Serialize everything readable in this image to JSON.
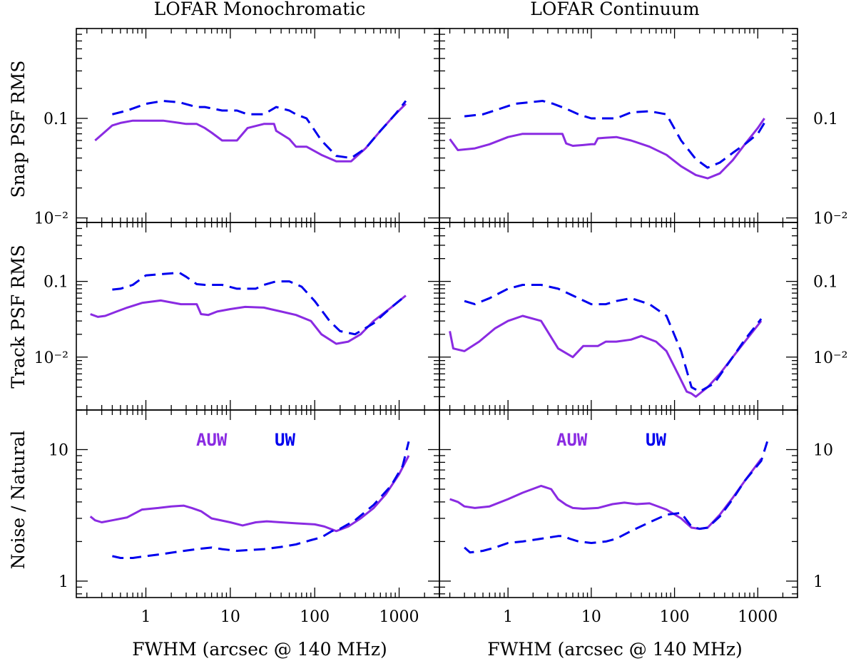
{
  "colors": {
    "auw": "#8A2BE2",
    "uw": "#0000EE",
    "axes": "#000000"
  },
  "chart_data": {
    "type": "line",
    "column_titles": [
      "LOFAR Monochromatic",
      "LOFAR Continuum"
    ],
    "xlabel": "FWHM (arcsec @ 140 MHz)",
    "xscale": "log",
    "xlim": [
      0.15,
      3000
    ],
    "x_tick_labels": [
      "1",
      "10",
      "100",
      "1000"
    ],
    "legend": {
      "auw": "AUW",
      "uw": "UW"
    },
    "rows": [
      {
        "ylabel": "Snap PSF RMS",
        "ylim": [
          0.009,
          0.8
        ],
        "tick_labels": [
          "0.1",
          "10⁻²"
        ],
        "panels": [
          {
            "title": "LOFAR Monochromatic",
            "series": [
              {
                "name": "AUW",
                "style": "solid",
                "x": [
                  0.25,
                  0.32,
                  0.4,
                  0.5,
                  0.7,
                  1,
                  1.6,
                  2.5,
                  3,
                  4,
                  5,
                  6,
                  8,
                  12,
                  16,
                  25,
                  33,
                  35,
                  50,
                  60,
                  80,
                  120,
                  180,
                  270,
                  400,
                  600,
                  900,
                  1200
                ],
                "y": [
                  0.06,
                  0.072,
                  0.085,
                  0.09,
                  0.095,
                  0.095,
                  0.095,
                  0.09,
                  0.088,
                  0.088,
                  0.08,
                  0.072,
                  0.06,
                  0.06,
                  0.08,
                  0.088,
                  0.088,
                  0.075,
                  0.062,
                  0.052,
                  0.052,
                  0.043,
                  0.037,
                  0.037,
                  0.05,
                  0.075,
                  0.11,
                  0.14
                ]
              },
              {
                "name": "UW",
                "style": "dashed",
                "x": [
                  0.4,
                  0.6,
                  1,
                  1.6,
                  2.5,
                  4,
                  5,
                  8,
                  12,
                  16,
                  25,
                  35,
                  50,
                  60,
                  80,
                  120,
                  180,
                  270,
                  400,
                  600,
                  900,
                  1200
                ],
                "y": [
                  0.11,
                  0.12,
                  0.14,
                  0.15,
                  0.145,
                  0.13,
                  0.13,
                  0.12,
                  0.12,
                  0.11,
                  0.11,
                  0.13,
                  0.12,
                  0.11,
                  0.1,
                  0.06,
                  0.042,
                  0.04,
                  0.05,
                  0.075,
                  0.11,
                  0.15
                ]
              }
            ]
          },
          {
            "title": "LOFAR Continuum",
            "series": [
              {
                "name": "AUW",
                "style": "solid",
                "x": [
                  0.2,
                  0.25,
                  0.4,
                  0.6,
                  1,
                  1.5,
                  2.5,
                  4,
                  4.5,
                  5,
                  6,
                  8,
                  10,
                  11,
                  12,
                  15,
                  20,
                  30,
                  50,
                  80,
                  120,
                  180,
                  250,
                  350,
                  500,
                  700,
                  1000,
                  1200
                ],
                "y": [
                  0.062,
                  0.048,
                  0.05,
                  0.055,
                  0.065,
                  0.07,
                  0.07,
                  0.07,
                  0.07,
                  0.056,
                  0.053,
                  0.054,
                  0.055,
                  0.055,
                  0.063,
                  0.064,
                  0.065,
                  0.06,
                  0.052,
                  0.043,
                  0.033,
                  0.027,
                  0.025,
                  0.028,
                  0.038,
                  0.055,
                  0.08,
                  0.1
                ]
              },
              {
                "name": "UW",
                "style": "dashed",
                "x": [
                  0.3,
                  0.5,
                  0.8,
                  1.2,
                  1.8,
                  2.6,
                  3.5,
                  5,
                  7,
                  10,
                  15,
                  20,
                  30,
                  50,
                  80,
                  120,
                  180,
                  250,
                  350,
                  500,
                  700,
                  1000,
                  1200
                ],
                "y": [
                  0.105,
                  0.11,
                  0.125,
                  0.14,
                  0.145,
                  0.15,
                  0.14,
                  0.125,
                  0.11,
                  0.1,
                  0.1,
                  0.1,
                  0.115,
                  0.118,
                  0.11,
                  0.06,
                  0.039,
                  0.032,
                  0.036,
                  0.045,
                  0.055,
                  0.07,
                  0.09
                ]
              }
            ]
          }
        ]
      },
      {
        "ylabel": "Track PSF RMS",
        "ylim": [
          0.002,
          0.6
        ],
        "tick_labels": [
          "0.1",
          "10⁻²"
        ],
        "panels": [
          {
            "title": "LOFAR Monochromatic",
            "series": [
              {
                "name": "AUW",
                "style": "solid",
                "x": [
                  0.22,
                  0.27,
                  0.33,
                  0.45,
                  0.6,
                  0.9,
                  1.5,
                  2.6,
                  4,
                  4.5,
                  5.5,
                  7,
                  10,
                  15,
                  25,
                  40,
                  60,
                  90,
                  120,
                  180,
                  250,
                  350,
                  500,
                  800,
                  1200
                ],
                "y": [
                  0.037,
                  0.034,
                  0.035,
                  0.04,
                  0.045,
                  0.052,
                  0.056,
                  0.05,
                  0.05,
                  0.037,
                  0.036,
                  0.04,
                  0.043,
                  0.046,
                  0.045,
                  0.04,
                  0.036,
                  0.03,
                  0.02,
                  0.015,
                  0.016,
                  0.02,
                  0.03,
                  0.045,
                  0.065
                ]
              },
              {
                "name": "UW",
                "style": "dashed",
                "x": [
                  0.4,
                  0.5,
                  0.7,
                  1,
                  1.6,
                  2.5,
                  3,
                  4,
                  5,
                  8,
                  12,
                  20,
                  25,
                  35,
                  50,
                  70,
                  100,
                  150,
                  200,
                  300,
                  500,
                  800,
                  1200
                ],
                "y": [
                  0.078,
                  0.08,
                  0.09,
                  0.12,
                  0.125,
                  0.13,
                  0.115,
                  0.092,
                  0.09,
                  0.09,
                  0.08,
                  0.08,
                  0.09,
                  0.1,
                  0.1,
                  0.085,
                  0.055,
                  0.03,
                  0.022,
                  0.02,
                  0.028,
                  0.045,
                  0.065
                ]
              }
            ]
          },
          {
            "title": "LOFAR Continuum",
            "series": [
              {
                "name": "AUW",
                "style": "solid",
                "x": [
                  0.2,
                  0.22,
                  0.3,
                  0.45,
                  0.7,
                  1,
                  1.5,
                  2.5,
                  4,
                  6,
                  8,
                  12,
                  15,
                  20,
                  30,
                  40,
                  60,
                  80,
                  110,
                  140,
                  160,
                  180,
                  250,
                  350,
                  500,
                  700,
                  1100
                ],
                "y": [
                  0.022,
                  0.013,
                  0.012,
                  0.016,
                  0.024,
                  0.03,
                  0.035,
                  0.03,
                  0.013,
                  0.01,
                  0.014,
                  0.014,
                  0.016,
                  0.016,
                  0.017,
                  0.019,
                  0.016,
                  0.012,
                  0.006,
                  0.0035,
                  0.0033,
                  0.003,
                  0.004,
                  0.006,
                  0.01,
                  0.016,
                  0.03
                ]
              },
              {
                "name": "UW",
                "style": "dashed",
                "x": [
                  0.3,
                  0.4,
                  0.6,
                  1,
                  1.5,
                  2.5,
                  4,
                  6,
                  10,
                  15,
                  20,
                  30,
                  50,
                  80,
                  120,
                  160,
                  200,
                  300,
                  500,
                  700,
                  1100
                ],
                "y": [
                  0.055,
                  0.05,
                  0.06,
                  0.08,
                  0.09,
                  0.09,
                  0.08,
                  0.065,
                  0.05,
                  0.05,
                  0.055,
                  0.06,
                  0.05,
                  0.035,
                  0.012,
                  0.004,
                  0.0035,
                  0.0045,
                  0.01,
                  0.017,
                  0.032
                ]
              }
            ]
          }
        ]
      },
      {
        "ylabel": "Noise / Natural",
        "ylim": [
          0.75,
          20
        ],
        "tick_labels": [
          "10",
          "1"
        ],
        "panels": [
          {
            "title": "LOFAR Monochromatic",
            "series": [
              {
                "name": "AUW",
                "style": "solid",
                "x": [
                  0.22,
                  0.25,
                  0.3,
                  0.4,
                  0.6,
                  0.9,
                  1.4,
                  2,
                  2.8,
                  3.5,
                  4.5,
                  6,
                  10,
                  14,
                  20,
                  27,
                  40,
                  60,
                  100,
                  130,
                  180,
                  250,
                  350,
                  500,
                  700,
                  1000,
                  1300
                ],
                "y": [
                  3.1,
                  2.9,
                  2.8,
                  2.9,
                  3.05,
                  3.5,
                  3.6,
                  3.7,
                  3.75,
                  3.6,
                  3.4,
                  3.0,
                  2.8,
                  2.65,
                  2.8,
                  2.85,
                  2.8,
                  2.75,
                  2.7,
                  2.6,
                  2.4,
                  2.6,
                  3.0,
                  3.6,
                  4.6,
                  6.5,
                  9.0
                ]
              },
              {
                "name": "UW",
                "style": "dashed",
                "x": [
                  0.4,
                  0.5,
                  0.7,
                  1,
                  1.5,
                  2.5,
                  4,
                  6,
                  8,
                  12,
                  16,
                  25,
                  40,
                  60,
                  90,
                  120,
                  160,
                  200,
                  300,
                  500,
                  800,
                  1100,
                  1300
                ],
                "y": [
                  1.55,
                  1.5,
                  1.5,
                  1.55,
                  1.6,
                  1.68,
                  1.75,
                  1.8,
                  1.75,
                  1.7,
                  1.72,
                  1.75,
                  1.82,
                  1.9,
                  2.05,
                  2.15,
                  2.4,
                  2.5,
                  2.9,
                  3.8,
                  5.3,
                  7.5,
                  11.5
                ]
              }
            ]
          },
          {
            "title": "LOFAR Continuum",
            "series": [
              {
                "name": "AUW",
                "style": "solid",
                "x": [
                  0.2,
                  0.25,
                  0.3,
                  0.4,
                  0.6,
                  1,
                  1.5,
                  2.5,
                  3.3,
                  4,
                  5,
                  6,
                  8,
                  12,
                  18,
                  25,
                  35,
                  50,
                  80,
                  120,
                  160,
                  200,
                  250,
                  350,
                  500,
                  700,
                  1100
                ],
                "y": [
                  4.2,
                  4.0,
                  3.7,
                  3.6,
                  3.7,
                  4.2,
                  4.7,
                  5.3,
                  5.0,
                  4.2,
                  3.8,
                  3.6,
                  3.55,
                  3.6,
                  3.85,
                  3.95,
                  3.85,
                  3.9,
                  3.5,
                  3.0,
                  2.55,
                  2.5,
                  2.55,
                  3.2,
                  4.3,
                  5.8,
                  8.5
                ]
              },
              {
                "name": "UW",
                "style": "dashed",
                "x": [
                  0.3,
                  0.35,
                  0.5,
                  0.7,
                  1,
                  1.5,
                  2.5,
                  4,
                  4.5,
                  5,
                  5.5,
                  7,
                  10,
                  15,
                  20,
                  30,
                  50,
                  80,
                  120,
                  160,
                  200,
                  250,
                  350,
                  500,
                  700,
                  1100,
                  1300
                ],
                "y": [
                  1.8,
                  1.65,
                  1.7,
                  1.8,
                  1.95,
                  2.0,
                  2.1,
                  2.2,
                  2.2,
                  2.15,
                  2.1,
                  2.0,
                  1.95,
                  2.0,
                  2.1,
                  2.4,
                  2.8,
                  3.2,
                  3.3,
                  2.6,
                  2.5,
                  2.55,
                  3.1,
                  4.2,
                  5.8,
                  8.2,
                  11.5
                ]
              }
            ]
          }
        ]
      }
    ]
  }
}
